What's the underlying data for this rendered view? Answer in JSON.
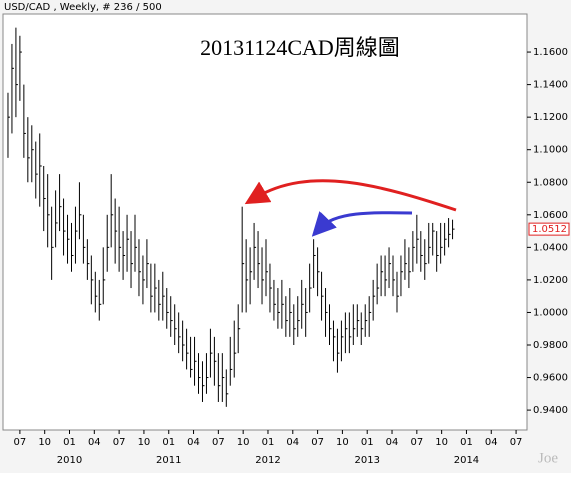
{
  "chart_data": {
    "type": "ohlc",
    "header": "USD/CAD , Weekly, # 236 / 500",
    "title": "20131124CAD周線圖",
    "watermark": "Joe",
    "color": "#000000",
    "x": [
      2009.38,
      2009.42,
      2009.46,
      2009.5,
      2009.54,
      2009.58,
      2009.62,
      2009.66,
      2009.7,
      2009.74,
      2009.78,
      2009.82,
      2009.86,
      2009.9,
      2009.94,
      2009.98,
      2010.02,
      2010.06,
      2010.1,
      2010.14,
      2010.18,
      2010.22,
      2010.26,
      2010.3,
      2010.34,
      2010.38,
      2010.42,
      2010.46,
      2010.5,
      2010.54,
      2010.58,
      2010.62,
      2010.66,
      2010.7,
      2010.74,
      2010.78,
      2010.82,
      2010.86,
      2010.9,
      2010.94,
      2010.98,
      2011.02,
      2011.06,
      2011.1,
      2011.14,
      2011.18,
      2011.22,
      2011.26,
      2011.3,
      2011.34,
      2011.38,
      2011.42,
      2011.46,
      2011.5,
      2011.54,
      2011.58,
      2011.62,
      2011.66,
      2011.7,
      2011.74,
      2011.78,
      2011.82,
      2011.86,
      2011.9,
      2011.94,
      2011.98,
      2012.02,
      2012.06,
      2012.1,
      2012.14,
      2012.18,
      2012.22,
      2012.26,
      2012.3,
      2012.34,
      2012.38,
      2012.42,
      2012.46,
      2012.5,
      2012.54,
      2012.58,
      2012.62,
      2012.66,
      2012.7,
      2012.74,
      2012.78,
      2012.82,
      2012.86,
      2012.9,
      2012.94,
      2012.98,
      2013.02,
      2013.06,
      2013.1,
      2013.14,
      2013.18,
      2013.22,
      2013.26,
      2013.3,
      2013.34,
      2013.38,
      2013.42,
      2013.46,
      2013.5,
      2013.54,
      2013.58,
      2013.62,
      2013.66,
      2013.7,
      2013.74,
      2013.78,
      2013.82,
      2013.86
    ],
    "high": [
      1.135,
      1.165,
      1.175,
      1.17,
      1.14,
      1.12,
      1.115,
      1.105,
      1.11,
      1.09,
      1.085,
      1.065,
      1.075,
      1.085,
      1.07,
      1.06,
      1.055,
      1.065,
      1.08,
      1.06,
      1.045,
      1.035,
      1.025,
      1.02,
      1.04,
      1.06,
      1.085,
      1.07,
      1.065,
      1.05,
      1.06,
      1.05,
      1.06,
      1.045,
      1.035,
      1.045,
      1.03,
      1.03,
      1.02,
      1.025,
      1.015,
      1.01,
      1.005,
      1.0,
      0.995,
      0.99,
      0.985,
      0.985,
      0.975,
      0.97,
      0.975,
      0.99,
      0.985,
      0.975,
      0.975,
      0.965,
      0.985,
      0.995,
      1.005,
      1.065,
      1.045,
      1.04,
      1.055,
      1.05,
      1.04,
      1.045,
      1.03,
      1.02,
      1.015,
      1.02,
      1.01,
      1.015,
      1.005,
      1.01,
      1.02,
      1.015,
      1.03,
      1.045,
      1.04,
      1.025,
      1.015,
      1.005,
      0.995,
      0.99,
      0.995,
      1.0,
      1.0,
      1.005,
      1.005,
      1.0,
      1.005,
      1.01,
      1.02,
      1.03,
      1.035,
      1.035,
      1.04,
      1.035,
      1.025,
      1.035,
      1.045,
      1.04,
      1.05,
      1.06,
      1.05,
      1.045,
      1.055,
      1.055,
      1.05,
      1.055,
      1.055,
      1.058,
      1.057
    ],
    "low": [
      1.095,
      1.11,
      1.12,
      1.13,
      1.095,
      1.08,
      1.08,
      1.07,
      1.065,
      1.05,
      1.04,
      1.02,
      1.04,
      1.05,
      1.035,
      1.03,
      1.025,
      1.03,
      1.045,
      1.03,
      1.02,
      1.005,
      1.0,
      0.995,
      1.005,
      1.025,
      1.04,
      1.03,
      1.025,
      1.02,
      1.025,
      1.015,
      1.025,
      1.01,
      1.005,
      1.015,
      1.0,
      1.0,
      0.995,
      0.995,
      0.99,
      0.985,
      0.98,
      0.975,
      0.97,
      0.965,
      0.96,
      0.955,
      0.95,
      0.945,
      0.95,
      0.96,
      0.955,
      0.945,
      0.945,
      0.942,
      0.955,
      0.96,
      0.975,
      1.0,
      1.0,
      1.005,
      1.02,
      1.015,
      1.005,
      1.01,
      1.0,
      0.995,
      0.99,
      0.99,
      0.985,
      0.985,
      0.98,
      0.985,
      0.99,
      0.985,
      1.0,
      1.015,
      1.01,
      0.995,
      0.985,
      0.98,
      0.97,
      0.963,
      0.97,
      0.975,
      0.975,
      0.98,
      0.985,
      0.98,
      0.985,
      0.985,
      0.995,
      1.005,
      1.01,
      1.01,
      1.015,
      1.01,
      1.0,
      1.01,
      1.02,
      1.015,
      1.025,
      1.03,
      1.025,
      1.02,
      1.03,
      1.035,
      1.025,
      1.03,
      1.035,
      1.04,
      1.045
    ],
    "close": [
      1.12,
      1.15,
      1.14,
      1.16,
      1.11,
      1.095,
      1.1,
      1.085,
      1.09,
      1.07,
      1.06,
      1.04,
      1.055,
      1.065,
      1.05,
      1.045,
      1.035,
      1.05,
      1.06,
      1.04,
      1.03,
      1.02,
      1.01,
      1.005,
      1.02,
      1.04,
      1.06,
      1.05,
      1.04,
      1.035,
      1.045,
      1.03,
      1.04,
      1.025,
      1.02,
      1.03,
      1.01,
      1.015,
      1.005,
      1.01,
      1.0,
      0.995,
      0.99,
      0.985,
      0.98,
      0.975,
      0.965,
      0.97,
      0.96,
      0.955,
      0.96,
      0.975,
      0.97,
      0.955,
      0.96,
      0.95,
      0.965,
      0.975,
      0.99,
      1.03,
      1.02,
      1.025,
      1.04,
      1.03,
      1.02,
      1.025,
      1.015,
      1.005,
      1.0,
      1.005,
      0.995,
      1.0,
      0.99,
      0.995,
      1.005,
      1.0,
      1.015,
      1.035,
      1.025,
      1.01,
      1.0,
      0.99,
      0.985,
      0.975,
      0.985,
      0.99,
      0.985,
      0.99,
      0.995,
      0.99,
      0.995,
      1.0,
      1.01,
      1.015,
      1.025,
      1.02,
      1.03,
      1.02,
      1.01,
      1.025,
      1.03,
      1.025,
      1.04,
      1.045,
      1.035,
      1.03,
      1.04,
      1.05,
      1.035,
      1.04,
      1.045,
      1.048,
      1.0512
    ],
    "xlim": [
      2009.35,
      2014.59
    ],
    "ylim": [
      0.929,
      1.184
    ],
    "yticks": [
      {
        "value": 0.94,
        "label": "0.9400"
      },
      {
        "value": 0.96,
        "label": "0.9600"
      },
      {
        "value": 0.98,
        "label": "0.9800"
      },
      {
        "value": 1.0,
        "label": "1.0000"
      },
      {
        "value": 1.02,
        "label": "1.0200"
      },
      {
        "value": 1.04,
        "label": "1.0400"
      },
      {
        "value": 1.06,
        "label": "1.0600"
      },
      {
        "value": 1.08,
        "label": "1.0800"
      },
      {
        "value": 1.1,
        "label": "1.1000"
      },
      {
        "value": 1.12,
        "label": "1.1200"
      },
      {
        "value": 1.14,
        "label": "1.1400"
      },
      {
        "value": 1.16,
        "label": "1.1600"
      }
    ],
    "xticks": [
      {
        "value": 2009.5,
        "label": "07"
      },
      {
        "value": 2009.75,
        "label": "10"
      },
      {
        "value": 2010.0,
        "label": "01"
      },
      {
        "value": 2010.25,
        "label": "04"
      },
      {
        "value": 2010.5,
        "label": "07"
      },
      {
        "value": 2010.75,
        "label": "10"
      },
      {
        "value": 2011.0,
        "label": "01"
      },
      {
        "value": 2011.25,
        "label": "04"
      },
      {
        "value": 2011.5,
        "label": "07"
      },
      {
        "value": 2011.75,
        "label": "10"
      },
      {
        "value": 2012.0,
        "label": "01"
      },
      {
        "value": 2012.25,
        "label": "04"
      },
      {
        "value": 2012.5,
        "label": "07"
      },
      {
        "value": 2012.75,
        "label": "10"
      },
      {
        "value": 2013.0,
        "label": "01"
      },
      {
        "value": 2013.25,
        "label": "04"
      },
      {
        "value": 2013.5,
        "label": "07"
      },
      {
        "value": 2013.75,
        "label": "10"
      },
      {
        "value": 2014.0,
        "label": "01"
      },
      {
        "value": 2014.25,
        "label": "04"
      },
      {
        "value": 2014.5,
        "label": "07"
      }
    ],
    "year_labels": [
      2010,
      2011,
      2012,
      2013,
      2014
    ]
  }
}
